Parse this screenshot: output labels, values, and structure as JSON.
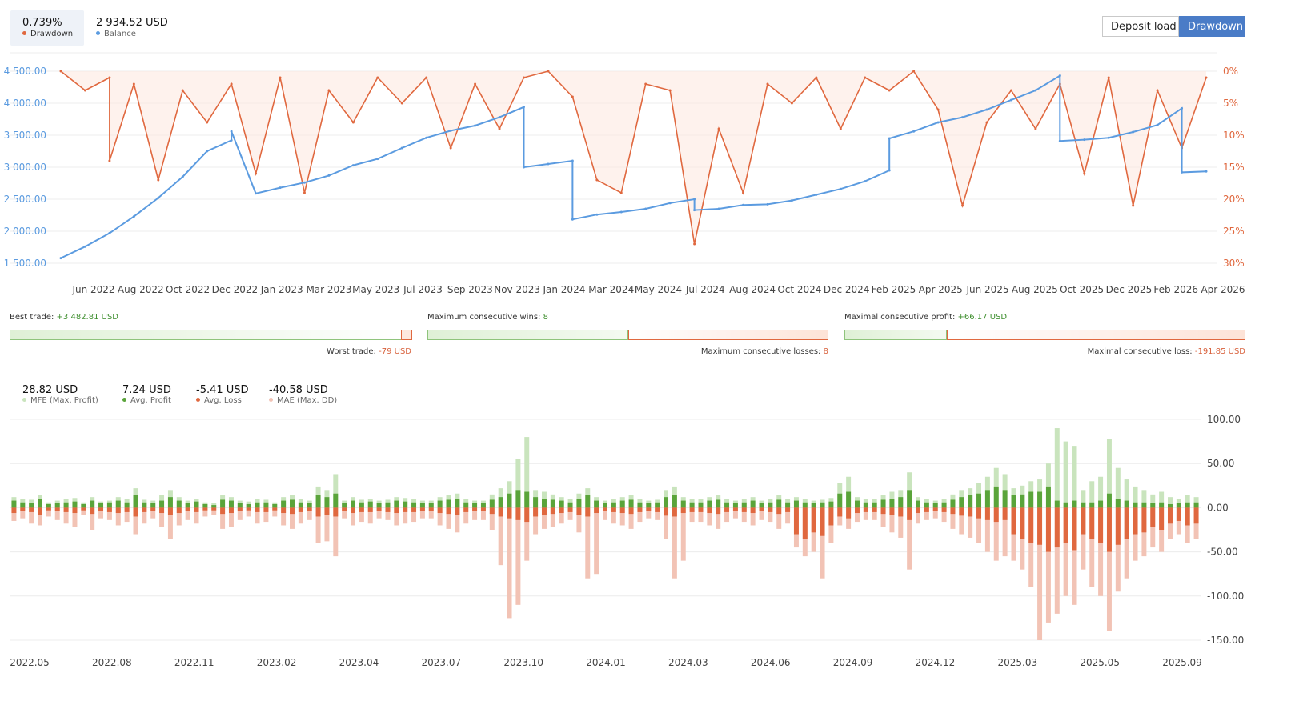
{
  "header": {
    "drawdown_value": "0.739%",
    "drawdown_label": "Drawdown",
    "balance_value": "2 934.52 USD",
    "balance_label": "Balance",
    "deposit_load_label": "Deposit load",
    "drawdown_button_label": "Drawdown"
  },
  "colors": {
    "drawdown": "#e0683f",
    "balance": "#5b9be0",
    "profit": "#5aa43a",
    "loss": "#e0683f",
    "mfe": "#c9e4bd",
    "mae": "#f2c3b5",
    "active_button": "#4a7cc7"
  },
  "stats": {
    "best_trade_label": "Best trade:",
    "best_trade_value": "+3 482.81 USD",
    "worst_trade_label": "Worst trade:",
    "worst_trade_value": "-79 USD",
    "max_consec_wins_label": "Maximum consecutive wins:",
    "max_consec_wins_value": "8",
    "max_consec_losses_label": "Maximum consecutive losses:",
    "max_consec_losses_value": "8",
    "max_consec_profit_label": "Maximal consecutive profit:",
    "max_consec_profit_value": "+66.17 USD",
    "max_consec_loss_label": "Maximal consecutive loss:",
    "max_consec_loss_value": "-191.85 USD",
    "bar1_fraction": 0.978,
    "bar2_fraction": 0.5,
    "bar3_fraction": 0.256
  },
  "mfe_legend": {
    "mfe_value": "28.82 USD",
    "mfe_label": "MFE (Max. Profit)",
    "avg_profit_value": "7.24 USD",
    "avg_profit_label": "Avg. Profit",
    "avg_loss_value": "-5.41 USD",
    "avg_loss_label": "Avg. Loss",
    "mae_value": "-40.58 USD",
    "mae_label": "MAE (Max. DD)"
  },
  "chart_data": [
    {
      "type": "line",
      "x_tick_labels": [
        "Jun 2022",
        "Aug 2022",
        "Oct 2022",
        "Dec 2022",
        "Jan 2023",
        "Mar 2023",
        "May 2023",
        "Jul 2023",
        "Sep 2023",
        "Nov 2023",
        "Jan 2024",
        "Mar 2024",
        "May 2024",
        "Jul 2024",
        "Aug 2024",
        "Oct 2024",
        "Dec 2024",
        "Feb 2025",
        "Apr 2025",
        "Jun 2025",
        "Aug 2025",
        "Oct 2025",
        "Dec 2025",
        "Feb 2026",
        "Apr 2026"
      ],
      "y_left_ticks": [
        "4 500.00",
        "4 000.00",
        "3 500.00",
        "3 000.00",
        "2 500.00",
        "2 000.00",
        "1 500.00"
      ],
      "y_left_range": [
        1500,
        4500
      ],
      "y_right_ticks": [
        "0%",
        "5%",
        "10%",
        "15%",
        "20%",
        "25%",
        "30%"
      ],
      "y_right_range": [
        0,
        30
      ],
      "series": [
        {
          "name": "Balance",
          "axis": "left",
          "x": [
            "2022-05",
            "2022-06",
            "2022-07",
            "2022-08",
            "2022-09",
            "2022-10",
            "2022-11",
            "2022-12",
            "2022-12",
            "2023-01",
            "2023-02",
            "2023-03",
            "2023-04",
            "2023-05",
            "2023-06",
            "2023-07",
            "2023-08",
            "2023-09",
            "2023-10",
            "2023-11",
            "2023-12",
            "2023-12",
            "2024-01",
            "2024-02",
            "2024-02",
            "2024-03",
            "2024-04",
            "2024-05",
            "2024-06",
            "2024-07",
            "2024-07",
            "2024-08",
            "2024-09",
            "2024-10",
            "2024-11",
            "2024-12",
            "2025-01",
            "2025-02",
            "2025-03",
            "2025-03",
            "2025-04",
            "2025-05",
            "2025-06",
            "2025-07",
            "2025-08",
            "2025-09",
            "2025-10",
            "2025-10",
            "2025-11",
            "2025-12",
            "2026-01",
            "2026-02",
            "2026-03",
            "2026-03",
            "2026-04"
          ],
          "y": [
            1580,
            1760,
            1970,
            2230,
            2520,
            2850,
            3250,
            3420,
            3560,
            2590,
            2680,
            2760,
            2870,
            3030,
            3130,
            3300,
            3460,
            3570,
            3650,
            3780,
            3940,
            3000,
            3050,
            3100,
            2185,
            2260,
            2300,
            2350,
            2440,
            2500,
            2330,
            2350,
            2410,
            2420,
            2480,
            2570,
            2660,
            2780,
            2950,
            3450,
            3560,
            3700,
            3780,
            3900,
            4050,
            4200,
            4430,
            3410,
            3430,
            3460,
            3550,
            3660,
            3920,
            2920,
            2934.52
          ]
        },
        {
          "name": "Drawdown",
          "axis": "right",
          "x": [
            "2022-05",
            "2022-06",
            "2022-07",
            "2022-07",
            "2022-08",
            "2022-09",
            "2022-10",
            "2022-11",
            "2022-12",
            "2023-01",
            "2023-02",
            "2023-03",
            "2023-04",
            "2023-05",
            "2023-06",
            "2023-07",
            "2023-08",
            "2023-09",
            "2023-10",
            "2023-11",
            "2023-12",
            "2024-01",
            "2024-02",
            "2024-03",
            "2024-04",
            "2024-05",
            "2024-06",
            "2024-07",
            "2024-08",
            "2024-09",
            "2024-10",
            "2024-11",
            "2024-12",
            "2025-01",
            "2025-02",
            "2025-03",
            "2025-04",
            "2025-05",
            "2025-06",
            "2025-07",
            "2025-08",
            "2025-09",
            "2025-10",
            "2025-11",
            "2025-12",
            "2026-01",
            "2026-02",
            "2026-03",
            "2026-04"
          ],
          "y": [
            0,
            3,
            1,
            14,
            2,
            17,
            3,
            8,
            2,
            16,
            1,
            19,
            3,
            8,
            1,
            5,
            1,
            12,
            2,
            9,
            1,
            0,
            4,
            17,
            19,
            2,
            3,
            27,
            9,
            19,
            2,
            5,
            1,
            9,
            1,
            3,
            0,
            6,
            21,
            8,
            3,
            9,
            2,
            16,
            1,
            21,
            3,
            12,
            1
          ]
        }
      ]
    },
    {
      "type": "bar",
      "x_tick_labels": [
        "2022.05",
        "2022.08",
        "2022.11",
        "2023.02",
        "2023.04",
        "2023.07",
        "2023.10",
        "2024.01",
        "2024.03",
        "2024.06",
        "2024.09",
        "2024.12",
        "2025.03",
        "2025.05",
        "2025.09"
      ],
      "y_ticks": [
        "100.00",
        "50.00",
        "0.00",
        "-50.00",
        "-100.00",
        "-150.00"
      ],
      "ylim": [
        -150,
        100
      ],
      "series": [
        {
          "name": "MFE (Max. Profit)",
          "values": [
            12,
            10,
            9,
            14,
            6,
            8,
            10,
            11,
            6,
            12,
            7,
            8,
            12,
            10,
            22,
            9,
            8,
            14,
            20,
            12,
            8,
            10,
            6,
            5,
            14,
            12,
            8,
            7,
            10,
            9,
            6,
            12,
            14,
            10,
            8,
            24,
            20,
            38,
            8,
            12,
            9,
            10,
            8,
            9,
            12,
            11,
            10,
            8,
            8,
            12,
            14,
            16,
            10,
            8,
            8,
            15,
            22,
            30,
            55,
            80,
            20,
            18,
            15,
            12,
            10,
            16,
            22,
            12,
            8,
            10,
            12,
            14,
            10,
            8,
            9,
            20,
            24,
            12,
            10,
            10,
            12,
            14,
            10,
            8,
            10,
            12,
            8,
            10,
            14,
            10,
            12,
            10,
            8,
            9,
            11,
            28,
            35,
            12,
            10,
            10,
            14,
            18,
            20,
            40,
            12,
            10,
            8,
            10,
            15,
            20,
            22,
            28,
            35,
            45,
            38,
            22,
            25,
            30,
            32,
            50,
            90,
            75,
            70,
            20,
            30,
            35,
            78,
            45,
            32,
            24,
            20,
            15,
            18,
            12,
            10,
            14,
            12
          ]
        },
        {
          "name": "Avg. Profit",
          "values": [
            8,
            6,
            5,
            10,
            4,
            5,
            6,
            7,
            4,
            8,
            5,
            6,
            8,
            6,
            14,
            6,
            5,
            8,
            12,
            8,
            5,
            7,
            4,
            3,
            9,
            8,
            5,
            4,
            6,
            6,
            4,
            8,
            9,
            6,
            5,
            14,
            12,
            16,
            5,
            8,
            6,
            7,
            5,
            6,
            8,
            7,
            6,
            5,
            5,
            8,
            9,
            10,
            6,
            5,
            5,
            9,
            12,
            16,
            20,
            18,
            12,
            10,
            9,
            8,
            6,
            10,
            14,
            8,
            5,
            6,
            8,
            9,
            6,
            5,
            6,
            12,
            14,
            8,
            6,
            6,
            8,
            9,
            6,
            5,
            6,
            8,
            5,
            6,
            9,
            6,
            8,
            6,
            5,
            6,
            7,
            16,
            18,
            8,
            6,
            6,
            9,
            10,
            12,
            20,
            8,
            6,
            5,
            6,
            9,
            12,
            14,
            16,
            20,
            24,
            20,
            14,
            15,
            18,
            18,
            24,
            8,
            6,
            8,
            6,
            6,
            8,
            16,
            10,
            8,
            6,
            6,
            5,
            6,
            4,
            5,
            6,
            6
          ]
        },
        {
          "name": "Avg. Loss",
          "values": [
            -6,
            -4,
            -5,
            -8,
            -3,
            -4,
            -5,
            -6,
            -3,
            -7,
            -4,
            -5,
            -6,
            -5,
            -10,
            -5,
            -4,
            -6,
            -8,
            -6,
            -4,
            -5,
            -3,
            -3,
            -7,
            -6,
            -4,
            -3,
            -5,
            -5,
            -3,
            -6,
            -7,
            -5,
            -4,
            -10,
            -8,
            -10,
            -4,
            -6,
            -5,
            -5,
            -4,
            -5,
            -6,
            -5,
            -5,
            -4,
            -4,
            -6,
            -7,
            -8,
            -5,
            -4,
            -4,
            -7,
            -10,
            -12,
            -14,
            -16,
            -10,
            -8,
            -7,
            -6,
            -5,
            -8,
            -10,
            -6,
            -4,
            -5,
            -6,
            -7,
            -5,
            -4,
            -5,
            -9,
            -10,
            -6,
            -5,
            -5,
            -6,
            -7,
            -5,
            -4,
            -5,
            -6,
            -4,
            -5,
            -7,
            -5,
            -30,
            -35,
            -28,
            -32,
            -20,
            -10,
            -12,
            -6,
            -5,
            -5,
            -7,
            -8,
            -10,
            -14,
            -6,
            -5,
            -4,
            -5,
            -7,
            -9,
            -10,
            -12,
            -14,
            -16,
            -14,
            -30,
            -35,
            -40,
            -42,
            -50,
            -45,
            -40,
            -48,
            -30,
            -35,
            -40,
            -50,
            -42,
            -35,
            -30,
            -28,
            -22,
            -25,
            -18,
            -15,
            -20,
            -18
          ]
        },
        {
          "name": "MAE (Max. DD)",
          "values": [
            -15,
            -12,
            -18,
            -20,
            -10,
            -14,
            -18,
            -22,
            -8,
            -25,
            -12,
            -14,
            -20,
            -16,
            -30,
            -18,
            -12,
            -22,
            -35,
            -20,
            -14,
            -18,
            -10,
            -8,
            -24,
            -22,
            -14,
            -10,
            -18,
            -16,
            -10,
            -20,
            -24,
            -18,
            -14,
            -40,
            -38,
            -55,
            -12,
            -20,
            -16,
            -18,
            -12,
            -14,
            -20,
            -18,
            -16,
            -12,
            -12,
            -20,
            -24,
            -28,
            -18,
            -14,
            -14,
            -25,
            -65,
            -125,
            -110,
            -60,
            -30,
            -24,
            -22,
            -18,
            -14,
            -28,
            -80,
            -75,
            -14,
            -18,
            -20,
            -24,
            -16,
            -12,
            -14,
            -35,
            -80,
            -60,
            -16,
            -16,
            -20,
            -24,
            -16,
            -12,
            -16,
            -20,
            -14,
            -16,
            -24,
            -18,
            -45,
            -55,
            -50,
            -80,
            -40,
            -20,
            -24,
            -16,
            -14,
            -14,
            -22,
            -28,
            -34,
            -70,
            -18,
            -14,
            -12,
            -16,
            -24,
            -30,
            -34,
            -40,
            -50,
            -60,
            -55,
            -60,
            -70,
            -90,
            -150,
            -130,
            -120,
            -100,
            -110,
            -70,
            -90,
            -100,
            -140,
            -95,
            -80,
            -60,
            -55,
            -45,
            -50,
            -35,
            -30,
            -40,
            -35
          ]
        }
      ]
    }
  ]
}
